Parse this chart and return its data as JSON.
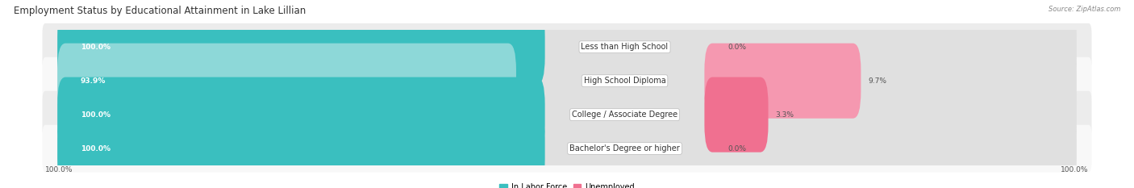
{
  "title": "Employment Status by Educational Attainment in Lake Lillian",
  "source": "Source: ZipAtlas.com",
  "categories": [
    "Less than High School",
    "High School Diploma",
    "College / Associate Degree",
    "Bachelor's Degree or higher"
  ],
  "in_labor_force": [
    100.0,
    93.9,
    100.0,
    100.0
  ],
  "unemployed": [
    0.0,
    9.7,
    3.3,
    0.0
  ],
  "labor_force_colors": [
    "#3abfbf",
    "#8dd8d8",
    "#3abfbf",
    "#3abfbf"
  ],
  "unemployed_colors": [
    "#f07090",
    "#f598b0",
    "#f07090",
    "#f07090"
  ],
  "row_bg_colors": [
    "#ececec",
    "#f8f8f8",
    "#ececec",
    "#f8f8f8"
  ],
  "bar_bg_color": "#e0e0e0",
  "x_left_label": "100.0%",
  "x_right_label": "100.0%",
  "title_fontsize": 8.5,
  "label_fontsize": 7.0,
  "tick_fontsize": 6.5,
  "legend_fontsize": 7.0,
  "figsize": [
    14.06,
    2.33
  ],
  "dpi": 100
}
